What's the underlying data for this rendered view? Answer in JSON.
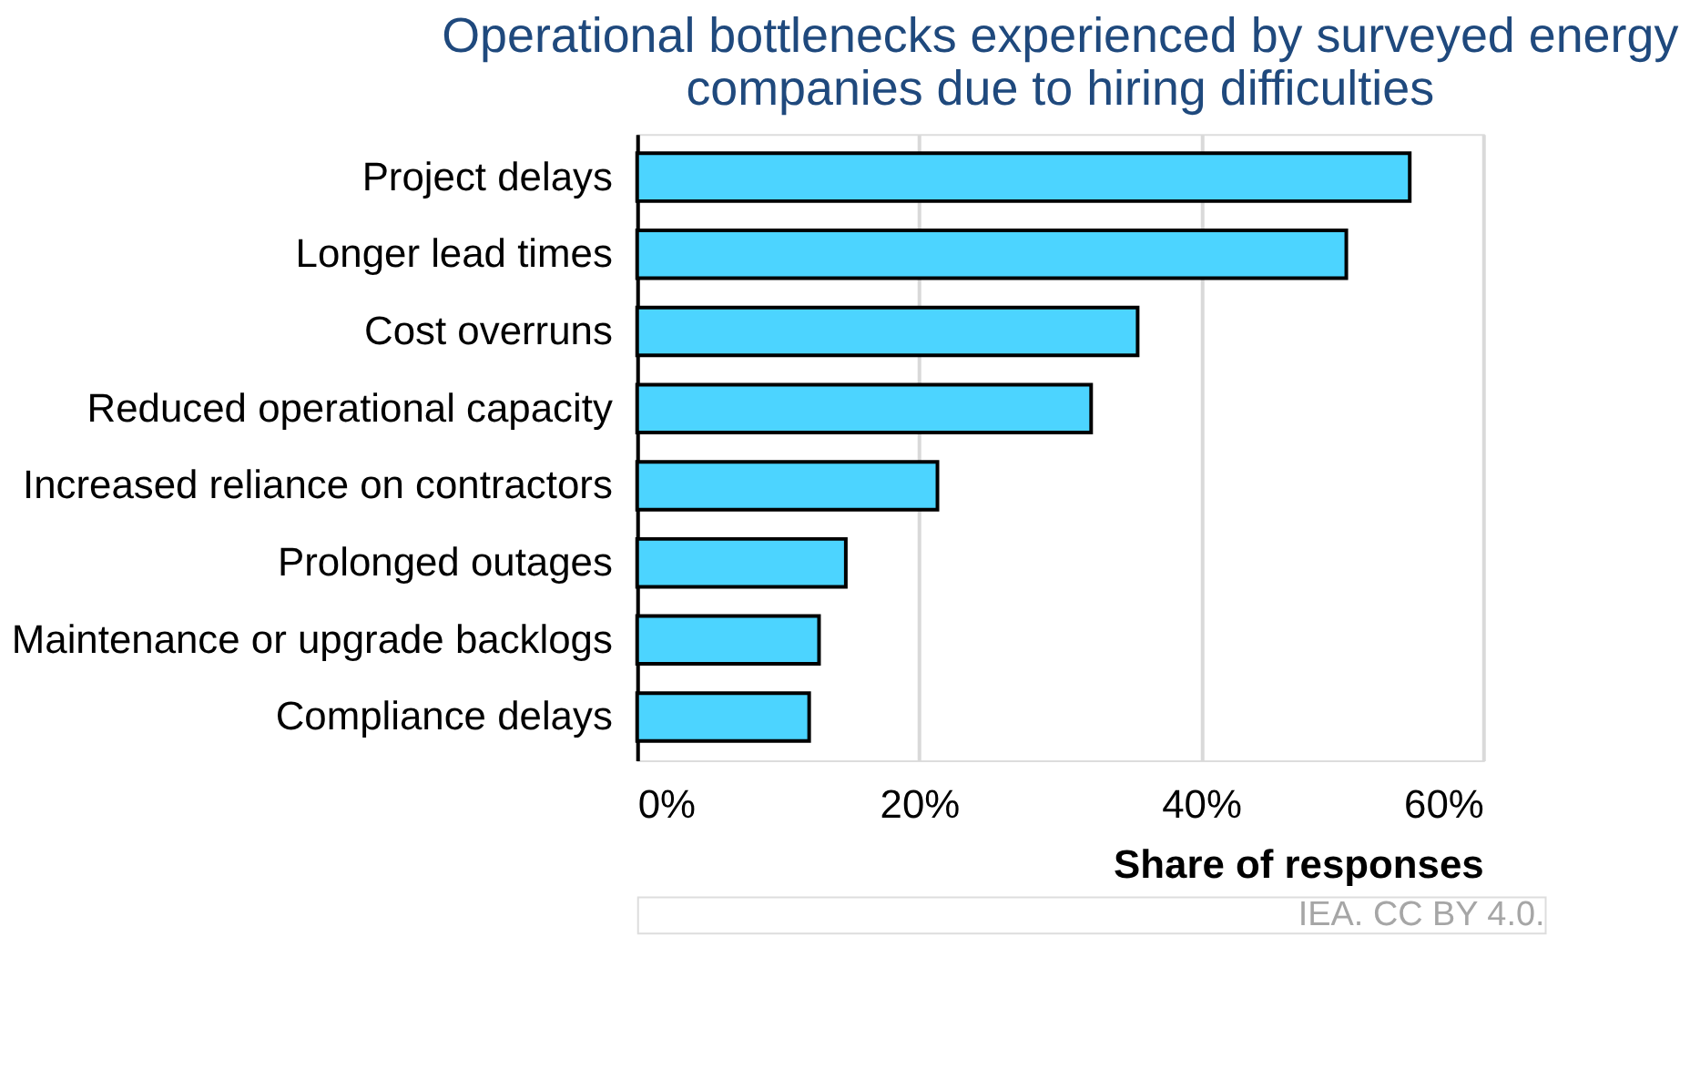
{
  "chart_data": {
    "type": "bar",
    "orientation": "horizontal",
    "title": [
      "Operational bottlenecks experienced by surveyed energy",
      "companies due to hiring difficulties"
    ],
    "xlabel": "Share of responses",
    "categories": [
      "Project delays",
      "Longer lead times",
      "Cost overruns",
      "Reduced operational capacity",
      "Increased reliance on contractors",
      "Prolonged outages",
      "Maintenance or upgrade backlogs",
      "Compliance delays"
    ],
    "series": [
      {
        "color": "#4cd4ff",
        "values": [
          54.8,
          50.3,
          35.5,
          32.2,
          21.3,
          14.8,
          12.9,
          12.2
        ]
      }
    ],
    "xlim": [
      0,
      60
    ],
    "xticks": [
      {
        "value": 0,
        "label": "0%"
      },
      {
        "value": 20,
        "label": "20%"
      },
      {
        "value": 40,
        "label": "40%"
      },
      {
        "value": 60,
        "label": "60%"
      }
    ],
    "grid": "x",
    "annotations": [
      "IEA. CC BY 4.0."
    ]
  }
}
